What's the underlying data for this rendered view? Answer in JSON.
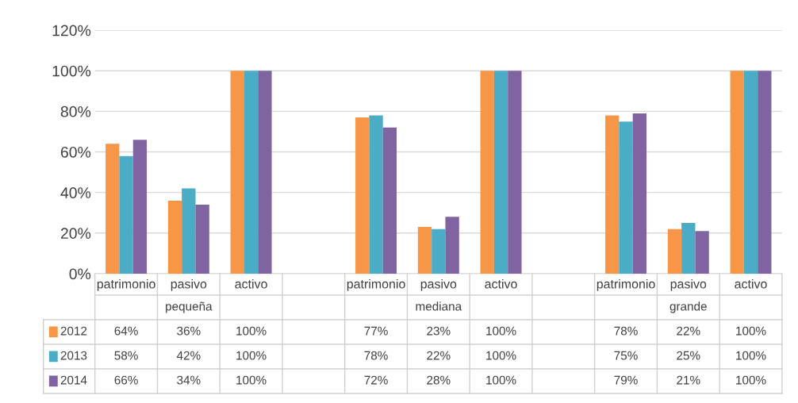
{
  "chart_data": {
    "type": "bar",
    "categories": [
      "patrimonio",
      "pasivo",
      "activo",
      null,
      "patrimonio",
      "pasivo",
      "activo",
      null,
      "patrimonio",
      "pasivo",
      "activo"
    ],
    "series": [
      {
        "name": "2012",
        "color": "#f79646",
        "values": [
          64,
          36,
          100,
          null,
          77,
          23,
          100,
          null,
          78,
          22,
          100
        ],
        "value_labels": [
          "64%",
          "36%",
          "100%",
          null,
          "77%",
          "23%",
          "100%",
          null,
          "78%",
          "22%",
          "100%"
        ]
      },
      {
        "name": "2013",
        "color": "#4bacc6",
        "values": [
          58,
          42,
          100,
          null,
          78,
          22,
          100,
          null,
          75,
          25,
          100
        ],
        "value_labels": [
          "58%",
          "42%",
          "100%",
          null,
          "78%",
          "22%",
          "100%",
          null,
          "75%",
          "25%",
          "100%"
        ]
      },
      {
        "name": "2014",
        "color": "#8064a2",
        "values": [
          66,
          34,
          100,
          null,
          72,
          28,
          100,
          null,
          79,
          21,
          100
        ],
        "value_labels": [
          "66%",
          "34%",
          "100%",
          null,
          "72%",
          "28%",
          "100%",
          null,
          "79%",
          "21%",
          "100%"
        ]
      }
    ],
    "annotations": [
      "pequeña",
      "mediana",
      "grande"
    ],
    "ylim": [
      0,
      120
    ],
    "yticks": [
      {
        "value": 0,
        "label": "0%"
      },
      {
        "value": 20,
        "label": "20%"
      },
      {
        "value": 40,
        "label": "40%"
      },
      {
        "value": 60,
        "label": "60%"
      },
      {
        "value": 80,
        "label": "80%"
      },
      {
        "value": 100,
        "label": "100%"
      },
      {
        "value": 120,
        "label": "120%"
      }
    ],
    "grid": "y",
    "legend": "bottom"
  }
}
